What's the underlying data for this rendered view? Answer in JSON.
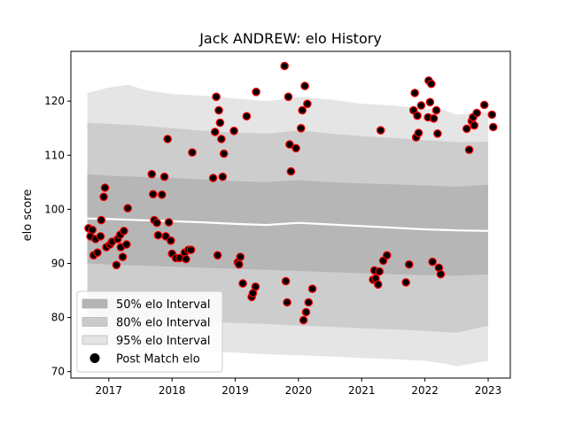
{
  "chart_data": {
    "type": "scatter",
    "title": "Jack ANDREW: elo History",
    "xlabel": "",
    "ylabel": "elo score",
    "xlim": [
      2016.4,
      2023.35
    ],
    "ylim": [
      68.8,
      129.2
    ],
    "x_ticks": [
      2017,
      2018,
      2019,
      2020,
      2021,
      2022,
      2023
    ],
    "x_tick_labels": [
      "2017",
      "2018",
      "2019",
      "2020",
      "2021",
      "2022",
      "2023"
    ],
    "y_ticks": [
      70,
      80,
      90,
      100,
      110,
      120
    ],
    "y_tick_labels": [
      "70",
      "80",
      "90",
      "100",
      "110",
      "120"
    ],
    "grid": false,
    "legend_position": "lower-left",
    "legend": [
      {
        "label": "50% elo Interval",
        "kind": "band",
        "color": "#b4b4b4"
      },
      {
        "label": "80% elo Interval",
        "kind": "band",
        "color": "#cbcbcb"
      },
      {
        "label": "95% elo Interval",
        "kind": "band",
        "color": "#e4e4e4"
      },
      {
        "label": "Post Match elo",
        "kind": "marker",
        "color": "#000000"
      }
    ],
    "bands": [
      {
        "name": "95% elo Interval",
        "color": "#e4e4e4",
        "x": [
          2016.66,
          2017.0,
          2017.3,
          2017.6,
          2018.0,
          2018.5,
          2019.0,
          2019.5,
          2020.0,
          2020.5,
          2021.0,
          2021.5,
          2022.0,
          2022.3,
          2022.5,
          2022.75,
          2023.0
        ],
        "upper": [
          121.5,
          122.5,
          123.0,
          122.0,
          121.3,
          121.0,
          120.5,
          120.0,
          120.8,
          120.3,
          119.5,
          119.2,
          118.6,
          118.4,
          117.5,
          117.8,
          118.0
        ],
        "lower": [
          75.0,
          74.6,
          74.2,
          74.5,
          74.0,
          73.8,
          73.5,
          73.2,
          73.0,
          72.8,
          72.5,
          72.3,
          72.0,
          71.5,
          71.0,
          71.5,
          72.0
        ]
      },
      {
        "name": "80% elo Interval",
        "color": "#cbcbcb",
        "x": [
          2016.66,
          2017.0,
          2017.5,
          2018.0,
          2018.5,
          2019.0,
          2019.5,
          2020.0,
          2020.5,
          2021.0,
          2021.5,
          2022.0,
          2022.5,
          2023.0
        ],
        "upper": [
          116.0,
          115.8,
          115.5,
          115.0,
          114.5,
          114.2,
          114.0,
          114.6,
          114.0,
          113.5,
          113.2,
          112.8,
          112.4,
          112.5
        ],
        "lower": [
          80.5,
          80.0,
          79.8,
          79.5,
          79.2,
          79.0,
          78.8,
          78.5,
          78.3,
          78.0,
          77.8,
          77.5,
          77.2,
          78.5
        ]
      },
      {
        "name": "50% elo Interval",
        "color": "#b4b4b4",
        "x": [
          2016.66,
          2017.0,
          2017.5,
          2018.0,
          2018.5,
          2019.0,
          2019.5,
          2020.0,
          2020.5,
          2021.0,
          2021.5,
          2022.0,
          2022.5,
          2023.0
        ],
        "upper": [
          106.5,
          106.2,
          106.0,
          105.8,
          105.5,
          105.2,
          105.0,
          105.4,
          105.0,
          104.8,
          104.6,
          104.4,
          104.2,
          104.5
        ],
        "lower": [
          90.0,
          89.8,
          89.6,
          89.4,
          89.2,
          89.0,
          88.8,
          88.6,
          88.4,
          88.2,
          88.0,
          87.8,
          87.7,
          88.0
        ]
      }
    ],
    "median_line": {
      "color": "#ffffff",
      "x": [
        2016.66,
        2017.0,
        2017.5,
        2018.0,
        2018.5,
        2019.0,
        2019.5,
        2020.0,
        2020.5,
        2021.0,
        2021.5,
        2022.0,
        2022.5,
        2023.0
      ],
      "y": [
        98.3,
        98.2,
        98.0,
        97.8,
        97.6,
        97.3,
        97.1,
        97.5,
        97.2,
        96.9,
        96.6,
        96.3,
        96.1,
        96.0
      ]
    },
    "series": [
      {
        "name": "Post Match elo",
        "marker_face": "#000000",
        "marker_edge": "#ff0000",
        "points": [
          [
            2016.68,
            96.5
          ],
          [
            2016.71,
            95.0
          ],
          [
            2016.74,
            96.2
          ],
          [
            2016.76,
            91.5
          ],
          [
            2016.79,
            94.5
          ],
          [
            2016.82,
            92.0
          ],
          [
            2016.87,
            95.0
          ],
          [
            2016.88,
            98.0
          ],
          [
            2016.92,
            102.3
          ],
          [
            2016.94,
            104.0
          ],
          [
            2016.96,
            93.0
          ],
          [
            2017.02,
            93.5
          ],
          [
            2017.05,
            94.0
          ],
          [
            2017.12,
            89.7
          ],
          [
            2017.14,
            94.5
          ],
          [
            2017.18,
            95.3
          ],
          [
            2017.19,
            93.0
          ],
          [
            2017.22,
            91.2
          ],
          [
            2017.24,
            96.0
          ],
          [
            2017.28,
            93.5
          ],
          [
            2017.3,
            100.2
          ],
          [
            2017.68,
            106.5
          ],
          [
            2017.7,
            102.8
          ],
          [
            2017.72,
            98.0
          ],
          [
            2017.76,
            97.5
          ],
          [
            2017.78,
            95.2
          ],
          [
            2017.84,
            102.7
          ],
          [
            2017.88,
            106.0
          ],
          [
            2017.9,
            95.0
          ],
          [
            2017.93,
            113.0
          ],
          [
            2017.95,
            97.6
          ],
          [
            2017.98,
            94.2
          ],
          [
            2018.0,
            91.8
          ],
          [
            2018.06,
            91.0
          ],
          [
            2018.12,
            91.0
          ],
          [
            2018.2,
            92.0
          ],
          [
            2018.22,
            90.8
          ],
          [
            2018.26,
            92.5
          ],
          [
            2018.3,
            92.5
          ],
          [
            2018.32,
            110.5
          ],
          [
            2018.65,
            105.8
          ],
          [
            2018.68,
            114.3
          ],
          [
            2018.7,
            120.8
          ],
          [
            2018.72,
            91.5
          ],
          [
            2018.74,
            118.3
          ],
          [
            2018.76,
            116.0
          ],
          [
            2018.78,
            113.0
          ],
          [
            2018.8,
            106.0
          ],
          [
            2018.82,
            110.3
          ],
          [
            2018.98,
            114.5
          ],
          [
            2019.04,
            90.2
          ],
          [
            2019.06,
            89.8
          ],
          [
            2019.08,
            91.2
          ],
          [
            2019.12,
            86.3
          ],
          [
            2019.18,
            117.2
          ],
          [
            2019.26,
            83.8
          ],
          [
            2019.28,
            84.5
          ],
          [
            2019.32,
            85.7
          ],
          [
            2019.33,
            121.7
          ],
          [
            2019.78,
            126.5
          ],
          [
            2019.8,
            86.7
          ],
          [
            2019.82,
            82.8
          ],
          [
            2019.84,
            120.8
          ],
          [
            2019.86,
            112.0
          ],
          [
            2019.88,
            107.0
          ],
          [
            2019.96,
            111.3
          ],
          [
            2020.04,
            115.0
          ],
          [
            2020.06,
            118.3
          ],
          [
            2020.08,
            79.5
          ],
          [
            2020.1,
            122.8
          ],
          [
            2020.12,
            81.0
          ],
          [
            2020.14,
            119.5
          ],
          [
            2020.16,
            82.8
          ],
          [
            2020.22,
            85.3
          ],
          [
            2021.18,
            87.0
          ],
          [
            2021.2,
            88.7
          ],
          [
            2021.22,
            87.2
          ],
          [
            2021.26,
            86.1
          ],
          [
            2021.28,
            88.5
          ],
          [
            2021.3,
            114.6
          ],
          [
            2021.34,
            90.5
          ],
          [
            2021.4,
            91.5
          ],
          [
            2021.7,
            86.5
          ],
          [
            2021.75,
            89.8
          ],
          [
            2021.82,
            118.3
          ],
          [
            2021.84,
            121.5
          ],
          [
            2021.86,
            113.3
          ],
          [
            2021.88,
            117.3
          ],
          [
            2021.9,
            114.1
          ],
          [
            2021.94,
            119.2
          ],
          [
            2022.05,
            117.0
          ],
          [
            2022.06,
            123.8
          ],
          [
            2022.08,
            119.8
          ],
          [
            2022.1,
            123.2
          ],
          [
            2022.12,
            90.3
          ],
          [
            2022.14,
            116.8
          ],
          [
            2022.18,
            118.3
          ],
          [
            2022.2,
            114.0
          ],
          [
            2022.22,
            89.2
          ],
          [
            2022.25,
            88.0
          ],
          [
            2022.66,
            114.9
          ],
          [
            2022.7,
            111.0
          ],
          [
            2022.74,
            116.3
          ],
          [
            2022.76,
            117.0
          ],
          [
            2022.78,
            115.5
          ],
          [
            2022.82,
            117.8
          ],
          [
            2022.94,
            119.3
          ],
          [
            2023.06,
            117.5
          ],
          [
            2023.08,
            115.2
          ]
        ]
      }
    ]
  }
}
